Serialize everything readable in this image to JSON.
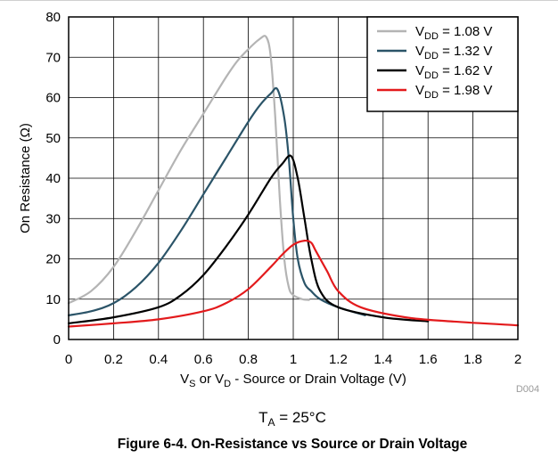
{
  "chart_data": {
    "type": "line",
    "xlabel": {
      "p1": "V",
      "s1": "S",
      "p2": " or V",
      "s2": "D",
      "p3": " - Source or Drain Voltage (V)"
    },
    "ylabel": "On Resistance (Ω)",
    "xlim": [
      0,
      2
    ],
    "ylim": [
      0,
      80
    ],
    "xticks": [
      "0",
      "0.2",
      "0.4",
      "0.6",
      "0.8",
      "1",
      "1.2",
      "1.4",
      "1.6",
      "1.8",
      "2"
    ],
    "yticks": [
      "0",
      "10",
      "20",
      "30",
      "40",
      "50",
      "60",
      "70",
      "80"
    ],
    "grid": true,
    "legend_position": "top-right",
    "series": [
      {
        "name": {
          "p": "V",
          "s": "DD",
          "t": " = 1.08 V"
        },
        "color": "#b4b4b4",
        "x": [
          0,
          0.1,
          0.2,
          0.3,
          0.4,
          0.5,
          0.6,
          0.7,
          0.75,
          0.8,
          0.85,
          0.88,
          0.9,
          0.92,
          0.94,
          0.96,
          0.98,
          1.0,
          1.04,
          1.07
        ],
        "y": [
          9,
          12,
          18,
          27,
          37,
          47,
          56,
          65,
          69,
          72,
          74.5,
          75,
          70,
          55,
          35,
          20,
          13,
          11,
          10,
          9.8
        ]
      },
      {
        "name": {
          "p": "V",
          "s": "DD",
          "t": " = 1.32 V"
        },
        "color": "#2b5468",
        "x": [
          0,
          0.1,
          0.2,
          0.3,
          0.4,
          0.5,
          0.6,
          0.7,
          0.8,
          0.85,
          0.9,
          0.93,
          0.96,
          0.98,
          1.0,
          1.02,
          1.05,
          1.08,
          1.12,
          1.2,
          1.32
        ],
        "y": [
          6,
          7,
          9,
          13,
          19,
          27,
          36,
          45,
          54,
          58,
          61,
          62,
          55,
          45,
          30,
          20,
          14,
          12,
          10,
          8,
          6
        ]
      },
      {
        "name": {
          "p": "V",
          "s": "DD",
          "t": " = 1.62 V"
        },
        "color": "#000000",
        "x": [
          0,
          0.2,
          0.4,
          0.5,
          0.6,
          0.7,
          0.8,
          0.9,
          0.95,
          0.99,
          1.02,
          1.05,
          1.08,
          1.12,
          1.2,
          1.4,
          1.6
        ],
        "y": [
          4,
          5.5,
          8,
          11,
          16,
          23,
          31,
          40,
          43.5,
          45.5,
          40,
          30,
          20,
          12,
          8,
          5.5,
          4.5
        ]
      },
      {
        "name": {
          "p": "V",
          "s": "DD",
          "t": " = 1.98 V"
        },
        "color": "#e31a1c",
        "x": [
          0,
          0.2,
          0.4,
          0.6,
          0.7,
          0.8,
          0.9,
          0.95,
          1.0,
          1.05,
          1.08,
          1.1,
          1.15,
          1.2,
          1.3,
          1.5,
          1.7,
          2.0
        ],
        "y": [
          3.2,
          4,
          5,
          7,
          9,
          12.5,
          18,
          21,
          23.5,
          24.5,
          24,
          22,
          17,
          12,
          8,
          5.5,
          4.5,
          3.5
        ]
      }
    ]
  },
  "note": {
    "code": "D004",
    "condition": {
      "p": "T",
      "s": "A",
      "t": " = 25°C"
    },
    "caption": "Figure 6-4. On-Resistance vs Source or Drain Voltage"
  }
}
